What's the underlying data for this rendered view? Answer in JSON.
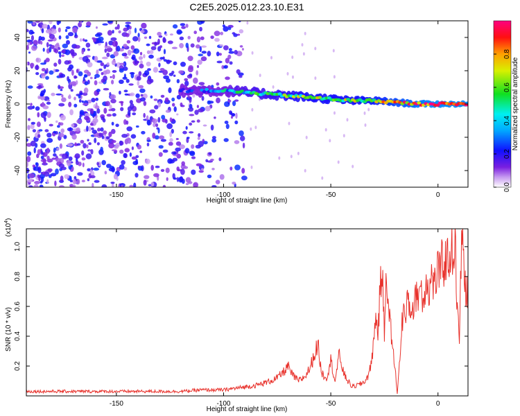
{
  "title": "C2E5.2025.012.23.10.E31",
  "colors": {
    "snr_line": "#e8312b",
    "axes": "#000000",
    "background": "#ffffff"
  },
  "chart_data": [
    {
      "type": "heatmap",
      "xlabel": "Height of straight line (km)",
      "ylabel": "Frequency (Hz)",
      "xlim": [
        -192,
        14
      ],
      "ylim": [
        -50,
        50
      ],
      "xticks": [
        -150,
        -100,
        -50,
        0
      ],
      "xtick_labels": [
        "-150",
        "-100",
        "-50",
        "0"
      ],
      "yticks": [
        -40,
        -20,
        0,
        20,
        40
      ],
      "ytick_labels": [
        "-40",
        "-20",
        "0",
        "20",
        "40"
      ],
      "colorbar": {
        "label": "Normalized spectral amplitude",
        "range": [
          0,
          1
        ],
        "ticks": [
          0,
          0.2,
          0.4,
          0.6,
          0.8
        ],
        "tick_labels": [
          "0.0",
          "0.2",
          "0.4",
          "0.6",
          "0.8"
        ],
        "colormap": "rainbow (white-violet-blue-cyan-green-yellow-red-magenta)"
      },
      "ridge": {
        "x": [
          -120,
          -110,
          -100,
          -90,
          -80,
          -70,
          -60,
          -50,
          -40,
          -30,
          -20,
          -10,
          0,
          10,
          14
        ],
        "frequency": [
          8,
          8,
          8,
          7,
          6,
          5,
          4,
          3,
          2,
          2,
          1,
          0,
          0,
          0,
          0
        ],
        "amplitude": [
          0.2,
          0.25,
          0.35,
          0.45,
          0.5,
          0.55,
          0.6,
          0.6,
          0.6,
          0.65,
          0.75,
          0.85,
          0.9,
          0.9,
          0.9
        ]
      },
      "noise_region": {
        "x_range": [
          -192,
          -90
        ],
        "frequency_range": [
          -50,
          50
        ],
        "amplitude_range": [
          0.05,
          0.25
        ]
      }
    },
    {
      "type": "line",
      "xlabel": "Height of straight line (km)",
      "ylabel": "SNR (10 * v/v)",
      "y_multiplier": "(x10⁴)",
      "xlim": [
        -192,
        14
      ],
      "ylim": [
        0.0,
        1.12
      ],
      "xticks": [
        -150,
        -100,
        -50,
        0
      ],
      "xtick_labels": [
        "-150",
        "-100",
        "-50",
        "0"
      ],
      "yticks": [
        0.2,
        0.4,
        0.6,
        0.8,
        1.0
      ],
      "ytick_labels": [
        "0.2",
        "0.4",
        "0.6",
        "0.8",
        "1.0"
      ],
      "series": [
        {
          "x": [
            -192,
            -180,
            -170,
            -160,
            -150,
            -140,
            -130,
            -120,
            -110,
            -100,
            -95,
            -90,
            -85,
            -80,
            -75,
            -72,
            -70,
            -68,
            -65,
            -62,
            -60,
            -58,
            -56,
            -55,
            -54,
            -52,
            -50,
            -48,
            -46,
            -44,
            -42,
            -40,
            -38,
            -36,
            -34,
            -32,
            -30,
            -29,
            -28,
            -27,
            -26,
            -25,
            -24,
            -23,
            -22,
            -21,
            -20,
            -19,
            -18,
            -17,
            -16,
            -15,
            -14,
            -13,
            -12,
            -11,
            -10,
            -9,
            -8,
            -7,
            -6,
            -5,
            -4,
            -3,
            -2,
            -1,
            0,
            1,
            2,
            3,
            4,
            5,
            6,
            7,
            8,
            9,
            10,
            11,
            12,
            13,
            14
          ],
          "values": [
            0.03,
            0.03,
            0.03,
            0.03,
            0.03,
            0.03,
            0.03,
            0.03,
            0.04,
            0.04,
            0.05,
            0.06,
            0.07,
            0.09,
            0.12,
            0.16,
            0.2,
            0.14,
            0.1,
            0.13,
            0.18,
            0.26,
            0.35,
            0.22,
            0.15,
            0.12,
            0.24,
            0.1,
            0.28,
            0.15,
            0.1,
            0.06,
            0.07,
            0.08,
            0.1,
            0.15,
            0.35,
            0.55,
            0.42,
            0.7,
            0.85,
            0.4,
            0.9,
            0.55,
            0.45,
            0.3,
            0.18,
            0.02,
            0.2,
            0.45,
            0.6,
            0.48,
            0.7,
            0.55,
            0.62,
            0.58,
            0.72,
            0.66,
            0.78,
            0.6,
            0.74,
            0.8,
            0.68,
            0.82,
            0.74,
            0.76,
            0.88,
            0.8,
            0.92,
            0.86,
            0.95,
            0.88,
            1.02,
            0.92,
            1.05,
            0.55,
            0.38,
            1.08,
            0.9,
            0.72,
            0.65
          ]
        }
      ]
    }
  ]
}
